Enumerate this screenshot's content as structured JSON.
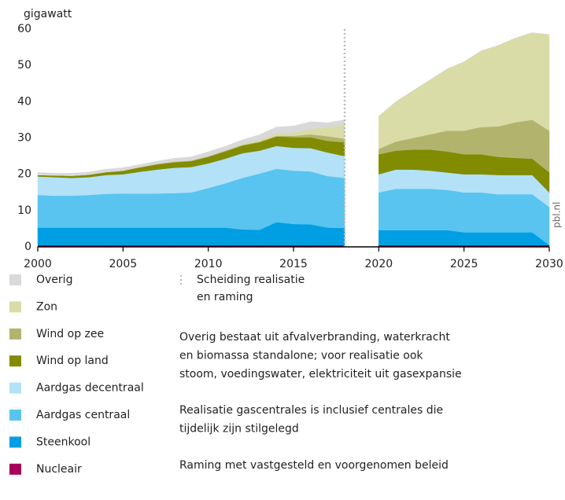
{
  "chart_data": {
    "type": "stacked_area",
    "y_label": "gigawatt",
    "source": "pbl.nl",
    "x": [
      2000,
      2001,
      2002,
      2003,
      2004,
      2005,
      2006,
      2007,
      2008,
      2009,
      2010,
      2011,
      2012,
      2013,
      2014,
      2015,
      2016,
      2017,
      2018,
      2019,
      2020,
      2021,
      2022,
      2023,
      2024,
      2025,
      2026,
      2027,
      2028,
      2029,
      2030
    ],
    "xlim": [
      2000,
      2030
    ],
    "xticks": [
      2000,
      2005,
      2010,
      2015,
      2020,
      2025,
      2030
    ],
    "ylim": [
      0,
      60
    ],
    "yticks": [
      0,
      10,
      20,
      30,
      40,
      50,
      60
    ],
    "grid": false,
    "series": [
      {
        "name": "Nucleair",
        "color": "#a6005a",
        "values": [
          0.5,
          0.5,
          0.5,
          0.5,
          0.5,
          0.5,
          0.5,
          0.5,
          0.5,
          0.5,
          0.5,
          0.5,
          0.5,
          0.5,
          0.5,
          0.5,
          0.5,
          0.5,
          0.5,
          null,
          0.5,
          0.5,
          0.5,
          0.5,
          0.5,
          0.5,
          0.5,
          0.5,
          0.5,
          0.5,
          0.5
        ]
      },
      {
        "name": "Steenkool",
        "color": "#009fe3",
        "values": [
          4.8,
          4.8,
          4.8,
          4.8,
          4.8,
          4.8,
          4.8,
          4.8,
          4.8,
          4.8,
          4.8,
          4.8,
          4.3,
          4.2,
          6.3,
          5.8,
          5.7,
          4.8,
          4.7,
          null,
          4.1,
          4.1,
          4.1,
          4.1,
          4.1,
          3.5,
          3.5,
          3.5,
          3.5,
          3.5,
          0
        ]
      },
      {
        "name": "Aardgas centraal",
        "color": "#59c4ef",
        "values": [
          9.0,
          8.8,
          8.8,
          9.0,
          9.3,
          9.4,
          9.4,
          9.4,
          9.5,
          9.7,
          10.9,
          12.2,
          14.2,
          15.5,
          14.7,
          14.7,
          14.6,
          14.2,
          13.8,
          null,
          10.4,
          11.4,
          11.4,
          11.4,
          11.1,
          11.0,
          11.0,
          10.5,
          10.5,
          10.5,
          10.5
        ]
      },
      {
        "name": "Aardgas decentraal",
        "color": "#b3e1f7",
        "values": [
          5.1,
          5.1,
          4.9,
          4.9,
          5.2,
          5.3,
          6.0,
          6.6,
          7.0,
          7.0,
          6.8,
          6.8,
          6.8,
          6.3,
          6.3,
          6.3,
          6.4,
          6.5,
          6.0,
          null,
          5.0,
          5.3,
          5.3,
          5.0,
          4.8,
          5.0,
          5.0,
          5.3,
          5.3,
          5.3,
          4.0
        ]
      },
      {
        "name": "Wind op land",
        "color": "#818c00",
        "values": [
          0.4,
          0.5,
          0.6,
          0.7,
          0.8,
          1.0,
          1.2,
          1.4,
          1.5,
          1.6,
          1.8,
          2.0,
          2.1,
          2.3,
          2.6,
          2.9,
          3.0,
          3.2,
          3.8,
          null,
          5.5,
          5.2,
          5.5,
          5.8,
          5.8,
          5.5,
          5.5,
          5.0,
          4.7,
          4.5,
          5.5
        ]
      },
      {
        "name": "Wind op zee",
        "color": "#b2b46d",
        "values": [
          0,
          0,
          0,
          0,
          0,
          0,
          0.1,
          0.2,
          0.2,
          0.2,
          0.2,
          0.2,
          0.2,
          0.2,
          0.2,
          0.4,
          0.8,
          1.3,
          1.0,
          null,
          1.5,
          2.5,
          3.2,
          4.2,
          5.7,
          6.5,
          7.5,
          8.4,
          9.8,
          10.7,
          11.5
        ]
      },
      {
        "name": "Zon",
        "color": "#d9dca7",
        "values": [
          0,
          0,
          0,
          0,
          0,
          0,
          0,
          0,
          0,
          0,
          0,
          0.1,
          0.2,
          0.4,
          0.6,
          0.9,
          1.5,
          2.5,
          3.7,
          null,
          9.0,
          11.0,
          13.0,
          15.0,
          17.0,
          19.0,
          21.0,
          22.3,
          23.2,
          24.0,
          26.5
        ]
      },
      {
        "name": "Overig",
        "color": "#d9d9d9",
        "values": [
          0.7,
          0.6,
          0.7,
          0.7,
          0.8,
          0.8,
          0.7,
          0.7,
          0.9,
          1.0,
          1.2,
          1.1,
          1.2,
          1.5,
          1.8,
          1.8,
          2.0,
          1.2,
          1.5,
          null,
          0,
          0,
          0,
          0,
          0,
          0,
          0,
          0,
          0,
          0,
          0
        ]
      }
    ],
    "divider": {
      "x": 2018,
      "label": [
        "Scheiding realisatie",
        "en raming"
      ]
    },
    "notes": [
      [
        "Overig bestaat uit afvalverbranding, waterkracht",
        "en biomassa standalone; voor realisatie ook",
        "stoom, voedingswater, elektriciteit uit gasexpansie"
      ],
      [
        "Realisatie gascentrales is inclusief centrales die",
        "tijdelijk zijn stilgelegd"
      ],
      [
        "Raming met vastgesteld en voorgenomen beleid"
      ]
    ]
  }
}
